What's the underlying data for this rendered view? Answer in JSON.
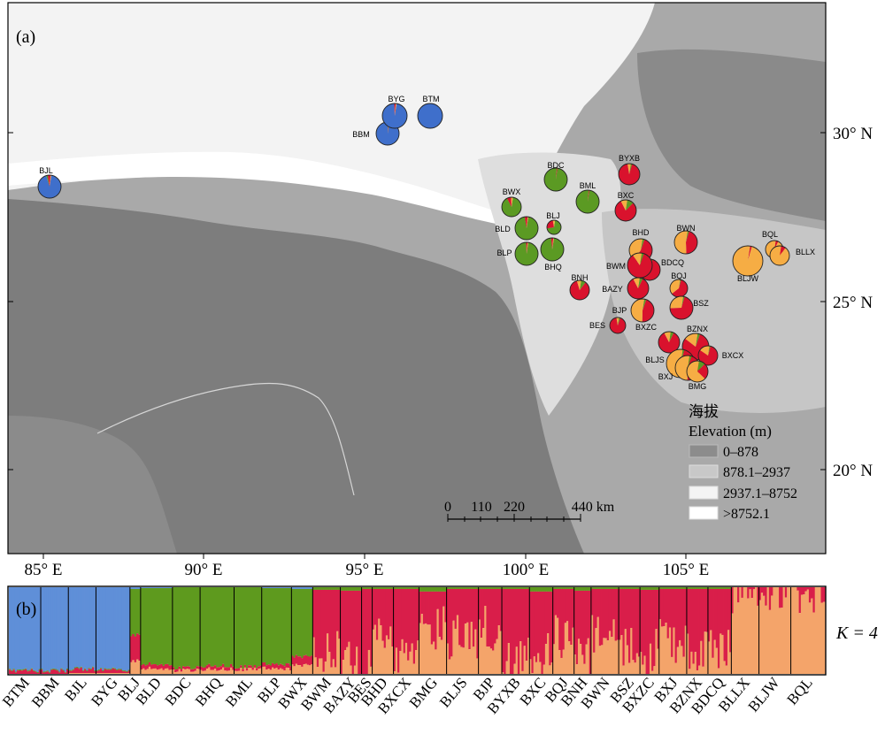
{
  "panel_a": {
    "label": "(a)",
    "lon_ticks": [
      "85° E",
      "90° E",
      "95° E",
      "100° E",
      "105° E"
    ],
    "lat_ticks": [
      "30° N",
      "25° N",
      "20° N"
    ],
    "legend": {
      "title_cn": "海拔",
      "title_en": "Elevation (m)",
      "items": [
        {
          "label": "0–878",
          "color": "#8c8c8c"
        },
        {
          "label": "878.1–2937",
          "color": "#c8c8c8"
        },
        {
          "label": "2937.1–8752",
          "color": "#f1f1f1"
        },
        {
          "label": ">8752.1",
          "color": "#ffffff"
        }
      ]
    },
    "scale_bar": {
      "ticks": [
        "0",
        "110",
        "220",
        "440 km"
      ]
    },
    "colors": {
      "blue": "#3f6fcb",
      "green": "#5b9a23",
      "red": "#d9122d",
      "orange": "#f6ad44",
      "black": "#000000"
    },
    "populations": [
      {
        "name": "BJL",
        "fractions": [
          0.93,
          0.02,
          0.04,
          0.01
        ]
      },
      {
        "name": "BBM",
        "fractions": [
          0.98,
          0.01,
          0.01,
          0.0
        ]
      },
      {
        "name": "BYG",
        "fractions": [
          0.97,
          0.0,
          0.02,
          0.01
        ]
      },
      {
        "name": "BTM",
        "fractions": [
          1.0,
          0.0,
          0.0,
          0.0
        ]
      },
      {
        "name": "BDC",
        "fractions": [
          0.0,
          0.99,
          0.01,
          0.0
        ]
      },
      {
        "name": "BML",
        "fractions": [
          0.0,
          0.99,
          0.01,
          0.0
        ]
      },
      {
        "name": "BWX",
        "fractions": [
          0.0,
          0.9,
          0.07,
          0.03
        ]
      },
      {
        "name": "BLJ",
        "fractions": [
          0.0,
          0.7,
          0.25,
          0.05
        ]
      },
      {
        "name": "BLD",
        "fractions": [
          0.0,
          0.95,
          0.04,
          0.01
        ]
      },
      {
        "name": "BLP",
        "fractions": [
          0.0,
          0.97,
          0.02,
          0.01
        ]
      },
      {
        "name": "BHQ",
        "fractions": [
          0.0,
          0.96,
          0.03,
          0.01
        ]
      },
      {
        "name": "BYXB",
        "fractions": [
          0.0,
          0.02,
          0.93,
          0.05
        ]
      },
      {
        "name": "BXC",
        "fractions": [
          0.0,
          0.1,
          0.8,
          0.1
        ]
      },
      {
        "name": "BNH",
        "fractions": [
          0.0,
          0.08,
          0.85,
          0.07
        ]
      },
      {
        "name": "BWN",
        "fractions": [
          0.0,
          0.02,
          0.45,
          0.53
        ]
      },
      {
        "name": "BHD",
        "fractions": [
          0.0,
          0.03,
          0.55,
          0.42
        ]
      },
      {
        "name": "BDCQ",
        "fractions": [
          0.0,
          0.02,
          0.8,
          0.18
        ]
      },
      {
        "name": "BWM",
        "fractions": [
          0.0,
          0.03,
          0.85,
          0.12
        ]
      },
      {
        "name": "BQJ",
        "fractions": [
          0.0,
          0.02,
          0.6,
          0.38
        ]
      },
      {
        "name": "BAZY",
        "fractions": [
          0.0,
          0.05,
          0.85,
          0.1
        ]
      },
      {
        "name": "BSZ",
        "fractions": [
          0.0,
          0.02,
          0.7,
          0.28
        ]
      },
      {
        "name": "BJP",
        "fractions": [
          0.0,
          0.03,
          0.45,
          0.52
        ]
      },
      {
        "name": "BES",
        "fractions": [
          0.0,
          0.03,
          0.92,
          0.05
        ]
      },
      {
        "name": "BXZC",
        "fractions": [
          0.0,
          0.05,
          0.85,
          0.1
        ]
      },
      {
        "name": "BZNX",
        "fractions": [
          0.0,
          0.03,
          0.8,
          0.17
        ]
      },
      {
        "name": "BXCX",
        "fractions": [
          0.0,
          0.02,
          0.8,
          0.18
        ]
      },
      {
        "name": "BLJS",
        "fractions": [
          0.0,
          0.02,
          0.2,
          0.78
        ]
      },
      {
        "name": "BXJ",
        "fractions": [
          0.0,
          0.03,
          0.45,
          0.52
        ]
      },
      {
        "name": "BMG",
        "fractions": [
          0.0,
          0.1,
          0.25,
          0.65
        ]
      },
      {
        "name": "BQL",
        "fractions": [
          0.0,
          0.0,
          0.05,
          0.95
        ]
      },
      {
        "name": "BLLX",
        "fractions": [
          0.0,
          0.0,
          0.08,
          0.92
        ]
      },
      {
        "name": "BLJW",
        "fractions": [
          0.0,
          0.0,
          0.02,
          0.98
        ]
      }
    ]
  },
  "panel_b": {
    "label": "(b)",
    "k_label": "K = 4",
    "cluster_colors": [
      "#5f8fd8",
      "#5e9a1e",
      "#d91e4a",
      "#f4a46a"
    ],
    "groups": [
      {
        "name": "BTM",
        "fractions": [
          0.98,
          0.01,
          0.01,
          0.0
        ]
      },
      {
        "name": "BBM",
        "fractions": [
          0.98,
          0.01,
          0.01,
          0.0
        ]
      },
      {
        "name": "BJL",
        "fractions": [
          0.96,
          0.01,
          0.02,
          0.01
        ]
      },
      {
        "name": "BYG",
        "fractions": [
          0.97,
          0.01,
          0.01,
          0.01
        ]
      },
      {
        "name": "BLJ",
        "fractions": [
          0.02,
          0.55,
          0.3,
          0.13
        ]
      },
      {
        "name": "BLD",
        "fractions": [
          0.01,
          0.9,
          0.05,
          0.04
        ]
      },
      {
        "name": "BDC",
        "fractions": [
          0.0,
          0.95,
          0.03,
          0.02
        ]
      },
      {
        "name": "BHQ",
        "fractions": [
          0.0,
          0.93,
          0.04,
          0.03
        ]
      },
      {
        "name": "BML",
        "fractions": [
          0.0,
          0.94,
          0.03,
          0.03
        ]
      },
      {
        "name": "BLP",
        "fractions": [
          0.01,
          0.9,
          0.05,
          0.04
        ]
      },
      {
        "name": "BWX",
        "fractions": [
          0.02,
          0.8,
          0.1,
          0.08
        ]
      },
      {
        "name": "BWM",
        "fractions": [
          0.0,
          0.03,
          0.72,
          0.25
        ]
      },
      {
        "name": "BAZY",
        "fractions": [
          0.0,
          0.04,
          0.85,
          0.11
        ]
      },
      {
        "name": "BES",
        "fractions": [
          0.0,
          0.02,
          0.94,
          0.04
        ]
      },
      {
        "name": "BHD",
        "fractions": [
          0.0,
          0.02,
          0.5,
          0.48
        ]
      },
      {
        "name": "BXCX",
        "fractions": [
          0.0,
          0.02,
          0.72,
          0.26
        ]
      },
      {
        "name": "BMG",
        "fractions": [
          0.0,
          0.05,
          0.4,
          0.55
        ]
      },
      {
        "name": "BLJS",
        "fractions": [
          0.0,
          0.02,
          0.55,
          0.43
        ]
      },
      {
        "name": "BJP",
        "fractions": [
          0.0,
          0.02,
          0.45,
          0.53
        ]
      },
      {
        "name": "BYXB",
        "fractions": [
          0.0,
          0.02,
          0.82,
          0.16
        ]
      },
      {
        "name": "BXC",
        "fractions": [
          0.0,
          0.05,
          0.75,
          0.2
        ]
      },
      {
        "name": "BQJ",
        "fractions": [
          0.0,
          0.02,
          0.55,
          0.43
        ]
      },
      {
        "name": "BNH",
        "fractions": [
          0.0,
          0.04,
          0.78,
          0.18
        ]
      },
      {
        "name": "BWN",
        "fractions": [
          0.0,
          0.02,
          0.5,
          0.48
        ]
      },
      {
        "name": "BSZ",
        "fractions": [
          0.0,
          0.02,
          0.68,
          0.3
        ]
      },
      {
        "name": "BXZC",
        "fractions": [
          0.0,
          0.03,
          0.72,
          0.25
        ]
      },
      {
        "name": "BXJ",
        "fractions": [
          0.0,
          0.02,
          0.62,
          0.36
        ]
      },
      {
        "name": "BZNX",
        "fractions": [
          0.0,
          0.02,
          0.7,
          0.28
        ]
      },
      {
        "name": "BDCQ",
        "fractions": [
          0.0,
          0.02,
          0.65,
          0.33
        ]
      },
      {
        "name": "BLLX",
        "fractions": [
          0.0,
          0.0,
          0.04,
          0.96
        ]
      },
      {
        "name": "BLJW",
        "fractions": [
          0.0,
          0.0,
          0.03,
          0.97
        ]
      },
      {
        "name": "BQL",
        "fractions": [
          0.0,
          0.0,
          0.04,
          0.96
        ]
      }
    ]
  }
}
